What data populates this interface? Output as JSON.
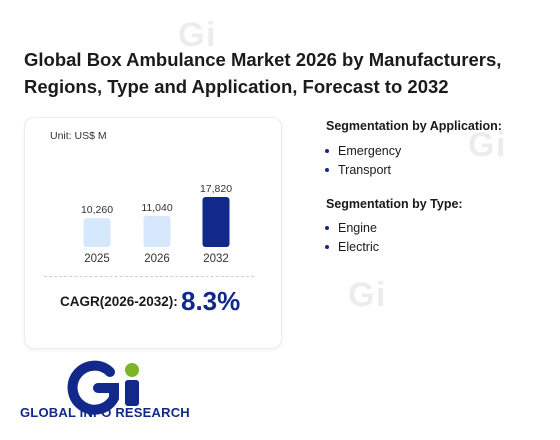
{
  "title": "Global Box Ambulance Market 2026 by Manufacturers, Regions, Type and Application, Forecast to 2032",
  "unit_label": "Unit: US$ M",
  "chart_data": {
    "type": "bar",
    "categories": [
      "2025",
      "2026",
      "2032"
    ],
    "values": [
      10260,
      11040,
      17820
    ],
    "value_labels": [
      "10,260",
      "11,040",
      "17,820"
    ],
    "unit": "US$ M",
    "colors": [
      "#d6e8fb",
      "#d6e8fb",
      "#12288a"
    ],
    "ylim": [
      0,
      17820
    ]
  },
  "cagr": {
    "label": "CAGR(2026-2032):",
    "value": "8.3%"
  },
  "segmentation_application": {
    "heading": "Segmentation by Application:",
    "items": [
      "Emergency",
      "Transport"
    ]
  },
  "segmentation_type": {
    "heading": "Segmentation by Type:",
    "items": [
      "Engine",
      "Electric"
    ]
  },
  "logo": {
    "text": "GLOBAL INFO RESEARCH",
    "colors": [
      "#12288a",
      "#7ab52a"
    ]
  },
  "watermark": {
    "text": "GLOBAL INFO RESEARCH"
  }
}
